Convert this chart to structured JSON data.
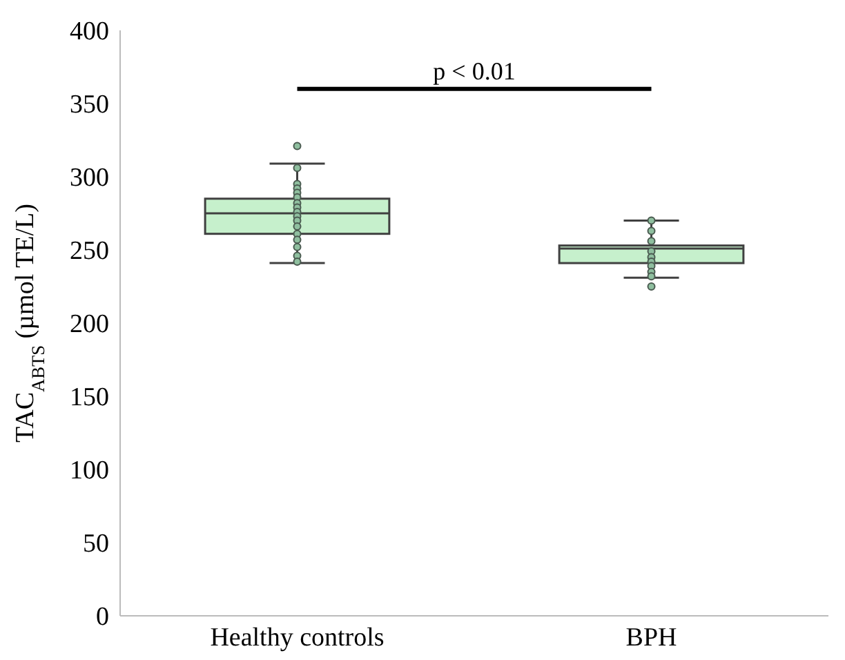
{
  "chart_data": {
    "type": "box",
    "ylabel": "TAC$_{ABTS}$ (µmol TE/L)",
    "categories": [
      "Healthy controls",
      "BPH"
    ],
    "color": "#c6f0cc",
    "boxes": [
      {
        "low": 241,
        "q1": 261,
        "median": 275,
        "q3": 285,
        "high": 309,
        "outliers": [
          321
        ]
      },
      {
        "low": 231,
        "q1": 241,
        "median": 251,
        "q3": 253,
        "high": 270,
        "outliers": [
          225
        ]
      }
    ],
    "series": [
      {
        "type": "scatter",
        "color": "#8fbf9f",
        "x": [
          "Healthy controls",
          "Healthy controls",
          "Healthy controls",
          "Healthy controls",
          "Healthy controls",
          "Healthy controls",
          "Healthy controls",
          "Healthy controls",
          "Healthy controls",
          "Healthy controls",
          "Healthy controls",
          "Healthy controls",
          "Healthy controls",
          "Healthy controls",
          "Healthy controls",
          "Healthy controls",
          "BPH",
          "BPH",
          "BPH",
          "BPH",
          "BPH",
          "BPH",
          "BPH",
          "BPH",
          "BPH"
        ],
        "values": [
          306,
          295,
          292,
          289,
          286,
          282,
          279,
          276,
          273,
          270,
          266,
          261,
          257,
          252,
          246,
          242,
          270,
          263,
          256,
          249,
          245,
          242,
          239,
          235,
          232
        ]
      }
    ],
    "ylim": [
      0,
      400
    ],
    "yticks": [
      0,
      50,
      100,
      150,
      200,
      250,
      300,
      350,
      400
    ],
    "grid": false,
    "annotations": [
      "p < 0.01"
    ]
  }
}
